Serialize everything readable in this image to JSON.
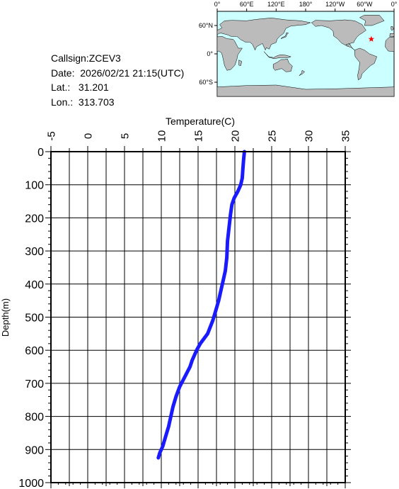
{
  "station": {
    "callsign_label": "Callsign:",
    "callsign": "ZCEV3",
    "date_label": "Date:",
    "date": "2026/02/21 21:15(UTC)",
    "lat_label": "Lat.:",
    "lat": "31.201",
    "lon_label": "Lon.:",
    "lon": "313.703"
  },
  "map": {
    "lon_ticks": [
      "0°",
      "60°E",
      "120°E",
      "180°",
      "120°W",
      "60°W",
      "0°"
    ],
    "lat_ticks": [
      "60°N",
      "0°",
      "60°S"
    ],
    "marker_lat": 31.201,
    "marker_lon": 313.703,
    "ocean_color": "#ccffff",
    "land_color": "#bbbbbb",
    "marker_color": "#ff0000"
  },
  "chart_data": {
    "type": "line",
    "xlabel": "Temperature(C)",
    "ylabel": "Depth(m)",
    "xlim": [
      -5,
      35
    ],
    "ylim": [
      0,
      1000
    ],
    "y_inverted": true,
    "x_ticks": [
      -5,
      0,
      5,
      10,
      15,
      20,
      25,
      30,
      35
    ],
    "y_ticks": [
      0,
      100,
      200,
      300,
      400,
      500,
      600,
      700,
      800,
      900,
      1000
    ],
    "x_tick_labels": [
      "-5",
      "0",
      "5",
      "10",
      "15",
      "20",
      "25",
      "30",
      "35"
    ],
    "y_tick_labels": [
      "0",
      "100",
      "200",
      "300",
      "400",
      "500",
      "600",
      "700",
      "800",
      "900",
      "1000"
    ],
    "grid": true,
    "series": [
      {
        "color": "#1a1aff",
        "points": [
          [
            21.3,
            0
          ],
          [
            21.2,
            20
          ],
          [
            21.1,
            50
          ],
          [
            21.0,
            80
          ],
          [
            20.8,
            100
          ],
          [
            20.4,
            120
          ],
          [
            19.9,
            140
          ],
          [
            19.6,
            160
          ],
          [
            19.4,
            190
          ],
          [
            19.2,
            230
          ],
          [
            19.0,
            270
          ],
          [
            18.9,
            320
          ],
          [
            18.7,
            360
          ],
          [
            18.4,
            390
          ],
          [
            18.1,
            420
          ],
          [
            17.8,
            450
          ],
          [
            17.4,
            480
          ],
          [
            17.0,
            510
          ],
          [
            16.3,
            550
          ],
          [
            15.3,
            580
          ],
          [
            14.8,
            600
          ],
          [
            14.2,
            630
          ],
          [
            13.9,
            650
          ],
          [
            13.2,
            680
          ],
          [
            12.5,
            710
          ],
          [
            12.0,
            740
          ],
          [
            11.6,
            770
          ],
          [
            11.3,
            800
          ],
          [
            11.0,
            830
          ],
          [
            10.6,
            860
          ],
          [
            10.2,
            890
          ],
          [
            9.8,
            910
          ],
          [
            9.6,
            925
          ]
        ]
      }
    ]
  }
}
